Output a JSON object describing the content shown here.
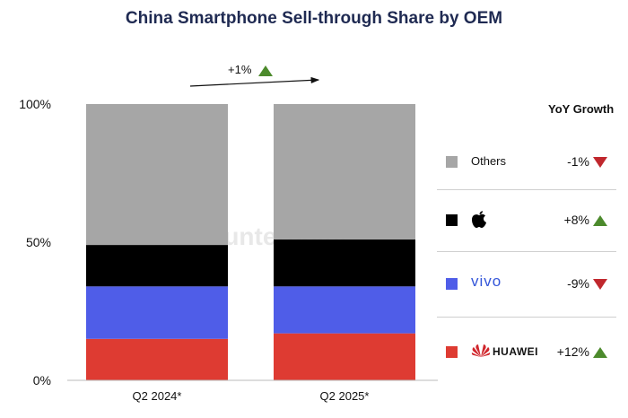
{
  "title": "China Smartphone Sell-through Share by OEM",
  "trend": {
    "label": "+1%",
    "direction": "up"
  },
  "yoy_header": "YoY Growth",
  "watermark": "Counterpoint",
  "colors": {
    "others": "#a6a6a6",
    "apple": "#000000",
    "vivo": "#4f5de8",
    "huawei": "#de3b32",
    "up": "#4c8a2c",
    "down": "#c0272d"
  },
  "legend": [
    {
      "name": "Others",
      "growth": "-1%",
      "direction": "down",
      "icon": "none"
    },
    {
      "name": "Apple",
      "growth": "+8%",
      "direction": "up",
      "icon": "apple-logo-icon"
    },
    {
      "name": "vivo",
      "growth": "-9%",
      "direction": "down",
      "icon": "vivo-logo-icon"
    },
    {
      "name": "HUAWEI",
      "growth": "+12%",
      "direction": "up",
      "icon": "huawei-logo-icon"
    }
  ],
  "chart_data": {
    "type": "bar",
    "stacked": true,
    "categories": [
      "Q2 2024*",
      "Q2 2025*"
    ],
    "series": [
      {
        "name": "HUAWEI",
        "values": [
          15,
          17
        ]
      },
      {
        "name": "vivo",
        "values": [
          19,
          17
        ]
      },
      {
        "name": "Apple",
        "values": [
          15,
          17
        ]
      },
      {
        "name": "Others",
        "values": [
          51,
          49
        ]
      }
    ],
    "ylim": [
      0,
      100
    ],
    "yticks": [
      "0%",
      "50%",
      "100%"
    ],
    "yticks_values": [
      0,
      50,
      100
    ],
    "grid": false,
    "legend_position": "right"
  }
}
